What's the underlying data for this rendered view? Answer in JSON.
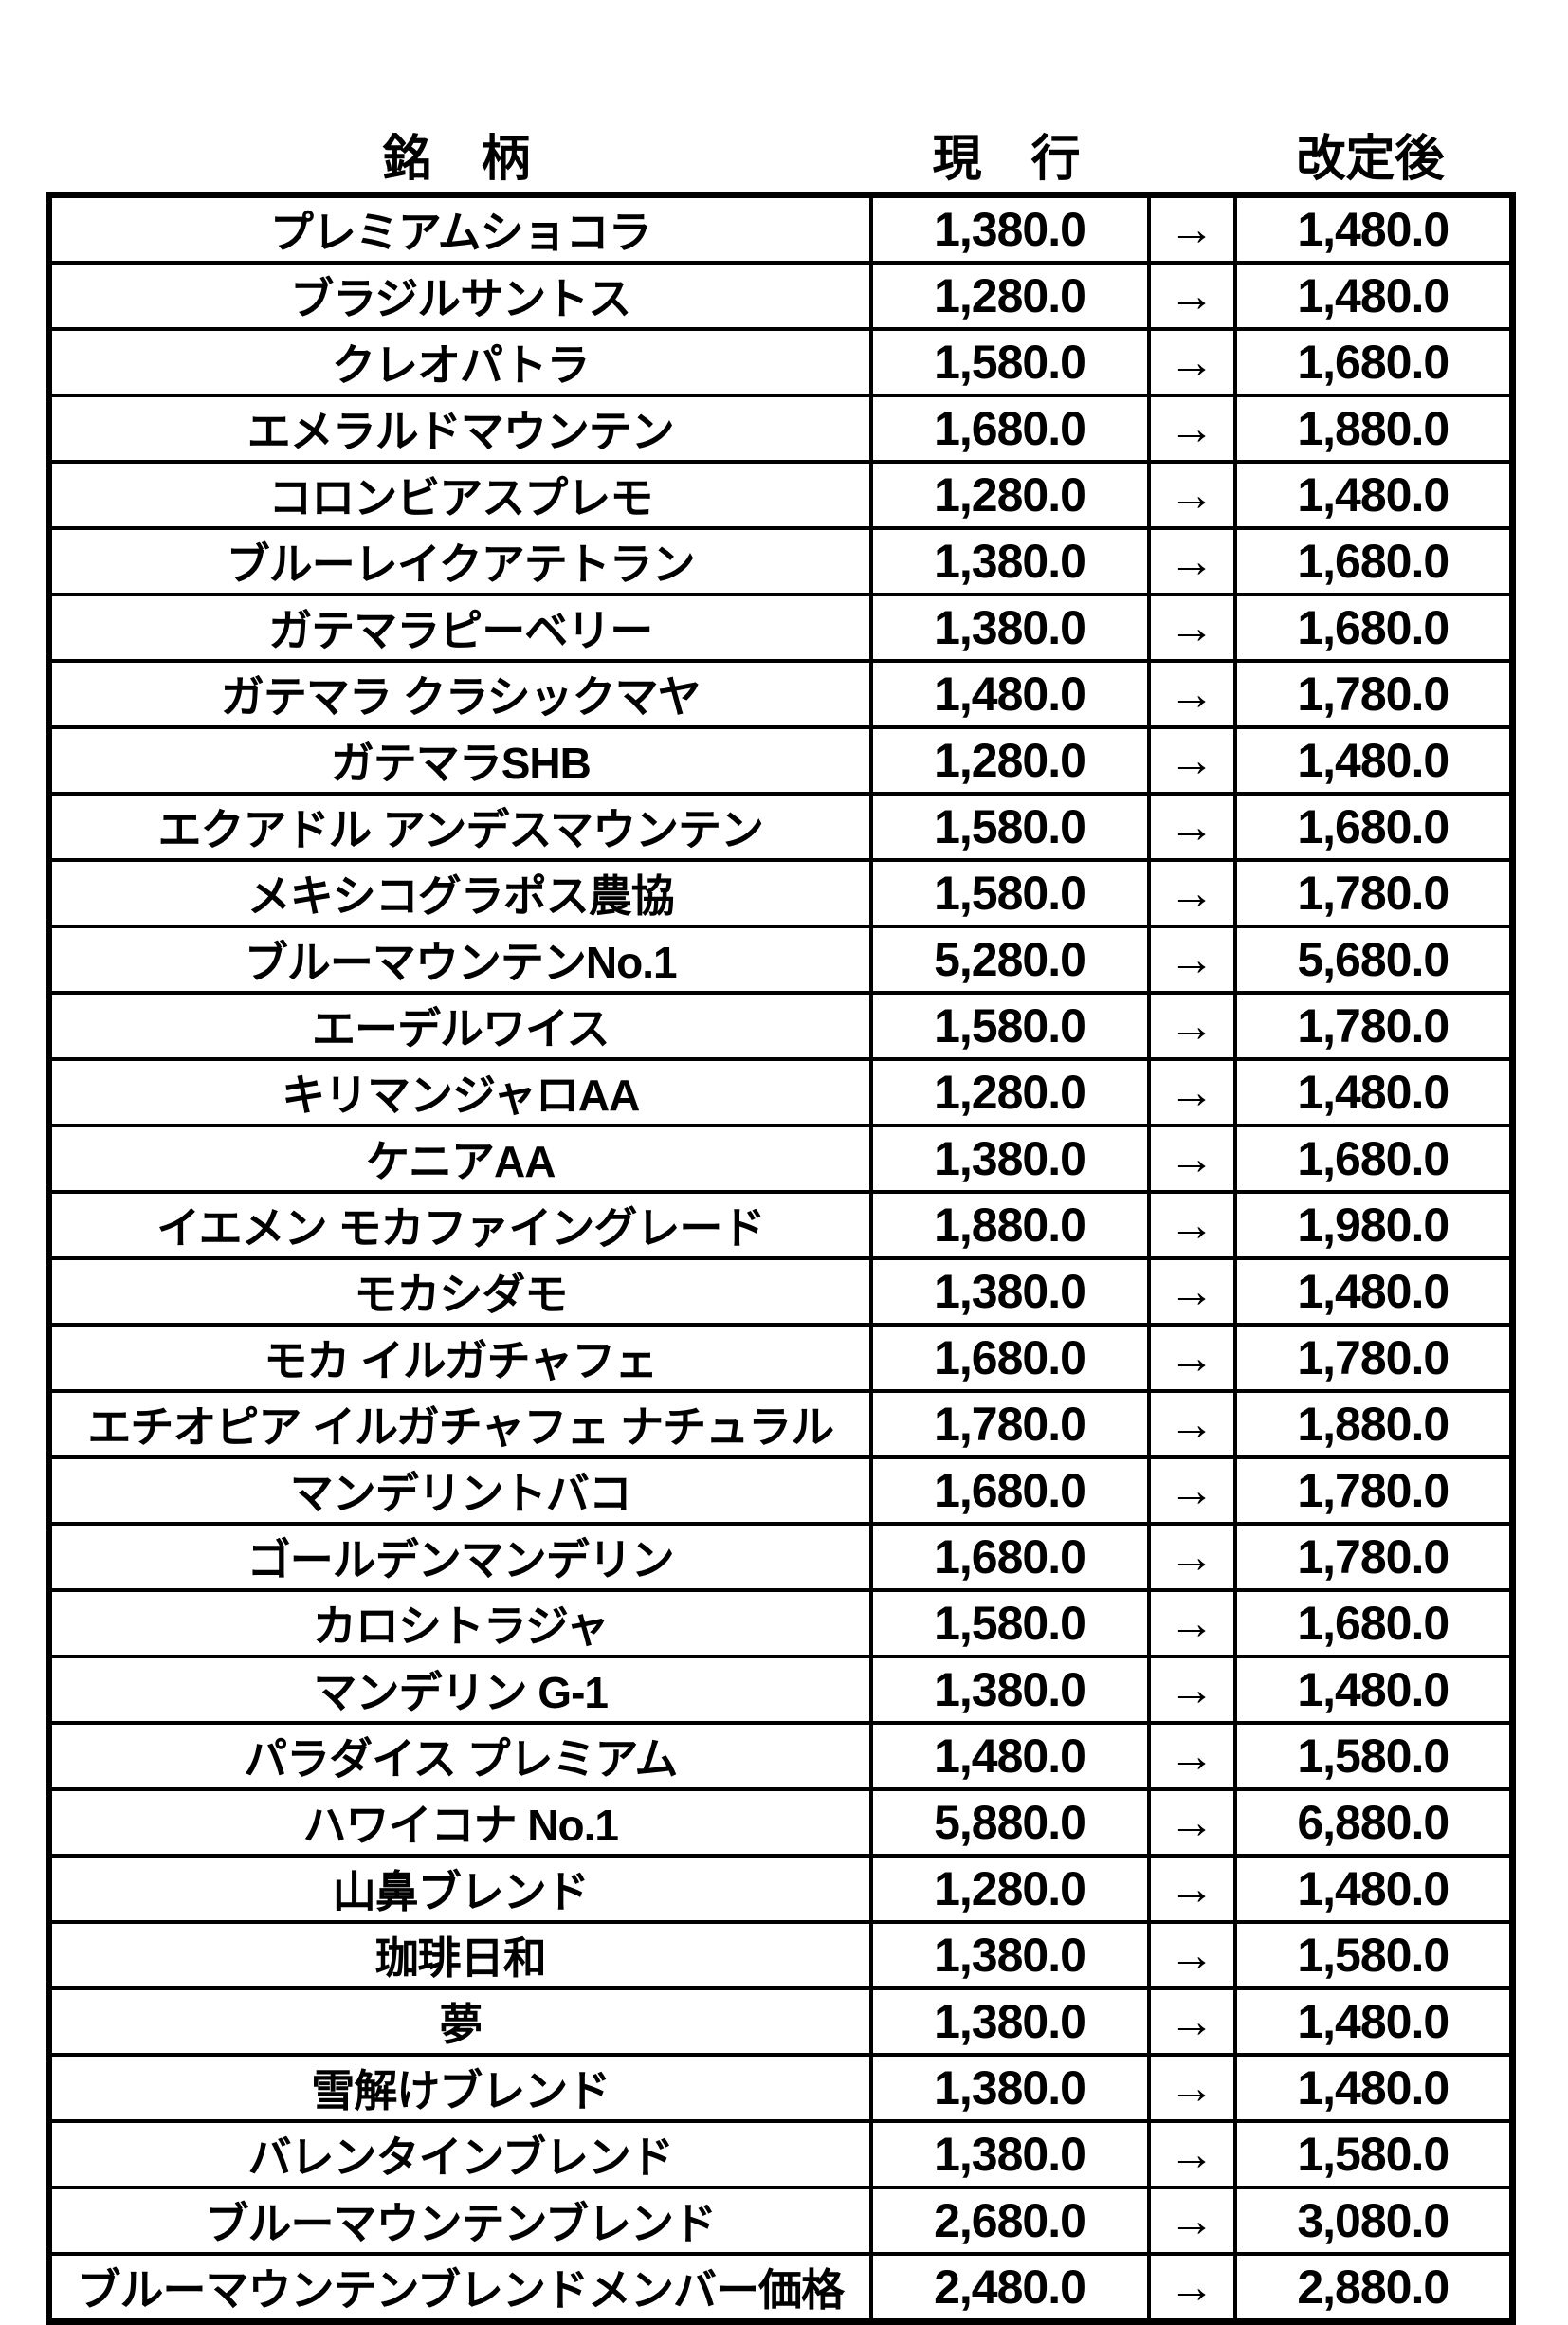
{
  "page": {
    "background": "#ffffff",
    "text_color": "#000000",
    "border_color": "#000000"
  },
  "header": {
    "brand": "銘　柄",
    "current": "現　行",
    "revised": "改定後"
  },
  "arrow": "→",
  "rows": [
    {
      "name": "プレミアムショコラ",
      "current": "1,380.0",
      "revised": "1,480.0"
    },
    {
      "name": "ブラジルサントス",
      "current": "1,280.0",
      "revised": "1,480.0"
    },
    {
      "name": "クレオパトラ",
      "current": "1,580.0",
      "revised": "1,680.0"
    },
    {
      "name": "エメラルドマウンテン",
      "current": "1,680.0",
      "revised": "1,880.0"
    },
    {
      "name": "コロンビアスプレモ",
      "current": "1,280.0",
      "revised": "1,480.0"
    },
    {
      "name": "ブルーレイクアテトラン",
      "current": "1,380.0",
      "revised": "1,680.0"
    },
    {
      "name": "ガテマラピーベリー",
      "current": "1,380.0",
      "revised": "1,680.0"
    },
    {
      "name": "ガテマラ クラシックマヤ",
      "current": "1,480.0",
      "revised": "1,780.0"
    },
    {
      "name": "ガテマラSHB",
      "current": "1,280.0",
      "revised": "1,480.0"
    },
    {
      "name": "エクアドル アンデスマウンテン",
      "current": "1,580.0",
      "revised": "1,680.0"
    },
    {
      "name": "メキシコグラポス農協",
      "current": "1,580.0",
      "revised": "1,780.0"
    },
    {
      "name": "ブルーマウンテンNo.1",
      "current": "5,280.0",
      "revised": "5,680.0"
    },
    {
      "name": "エーデルワイス",
      "current": "1,580.0",
      "revised": "1,780.0"
    },
    {
      "name": "キリマンジャロAA",
      "current": "1,280.0",
      "revised": "1,480.0"
    },
    {
      "name": "ケニアAA",
      "current": "1,380.0",
      "revised": "1,680.0"
    },
    {
      "name": "イエメン モカファイングレード",
      "current": "1,880.0",
      "revised": "1,980.0"
    },
    {
      "name": "モカシダモ",
      "current": "1,380.0",
      "revised": "1,480.0"
    },
    {
      "name": "モカ イルガチャフェ",
      "current": "1,680.0",
      "revised": "1,780.0"
    },
    {
      "name": "エチオピア イルガチャフェ ナチュラル",
      "current": "1,780.0",
      "revised": "1,880.0"
    },
    {
      "name": "マンデリントバコ",
      "current": "1,680.0",
      "revised": "1,780.0"
    },
    {
      "name": "ゴールデンマンデリン",
      "current": "1,680.0",
      "revised": "1,780.0"
    },
    {
      "name": "カロシトラジャ",
      "current": "1,580.0",
      "revised": "1,680.0"
    },
    {
      "name": "マンデリン G-1",
      "current": "1,380.0",
      "revised": "1,480.0"
    },
    {
      "name": "パラダイス プレミアム",
      "current": "1,480.0",
      "revised": "1,580.0"
    },
    {
      "name": "ハワイコナ No.1",
      "current": "5,880.0",
      "revised": "6,880.0"
    },
    {
      "name": "山鼻ブレンド",
      "current": "1,280.0",
      "revised": "1,480.0"
    },
    {
      "name": "珈琲日和",
      "current": "1,380.0",
      "revised": "1,580.0"
    },
    {
      "name": "夢",
      "current": "1,380.0",
      "revised": "1,480.0"
    },
    {
      "name": "雪解けブレンド",
      "current": "1,380.0",
      "revised": "1,480.0"
    },
    {
      "name": "バレンタインブレンド",
      "current": "1,380.0",
      "revised": "1,580.0"
    },
    {
      "name": "ブルーマウンテンブレンド",
      "current": "2,680.0",
      "revised": "3,080.0"
    },
    {
      "name": "ブルーマウンテンブレンドメンバー価格",
      "current": "2,480.0",
      "revised": "2,880.0"
    }
  ]
}
